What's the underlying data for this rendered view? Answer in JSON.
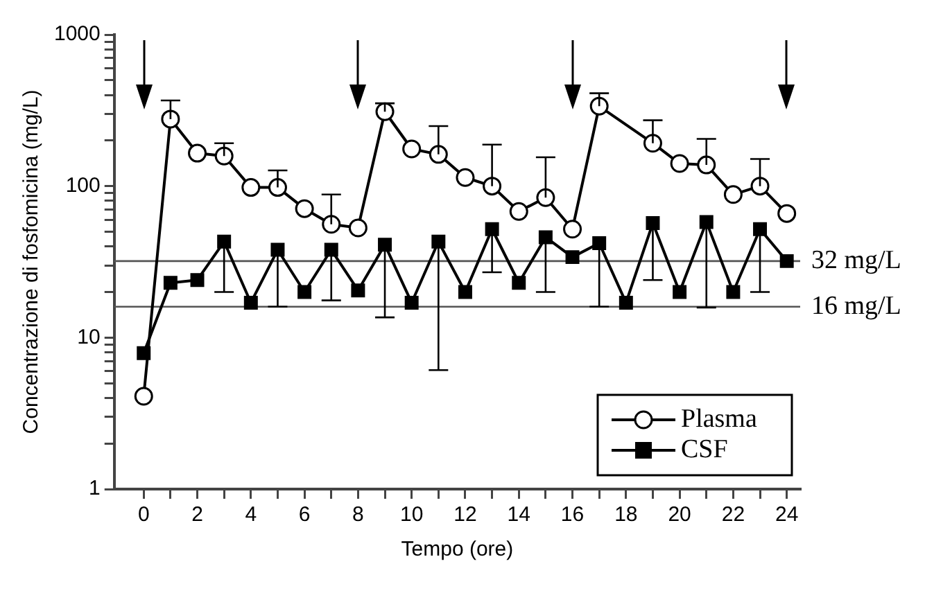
{
  "chart_data": {
    "type": "line",
    "xlabel": "Tempo (ore)",
    "ylabel": "Concentrazione di fosfomicina (mg/L)",
    "log": "y",
    "xlim": [
      -1.1,
      24.5
    ],
    "ylim": [
      1,
      1000
    ],
    "xticks": [
      0,
      {
        "value": 1,
        "label": null
      },
      2,
      {
        "value": 3,
        "label": null
      },
      4,
      {
        "value": 5,
        "label": null
      },
      6,
      {
        "value": 7,
        "label": null
      },
      8,
      {
        "value": 9,
        "label": null
      },
      10,
      {
        "value": 11,
        "label": null
      },
      12,
      {
        "value": 13,
        "label": null
      },
      14,
      {
        "value": 15,
        "label": null
      },
      16,
      {
        "value": 17,
        "label": null
      },
      18,
      {
        "value": 19,
        "label": null
      },
      20,
      {
        "value": 21,
        "label": null
      },
      22,
      {
        "value": 23,
        "label": null
      },
      24
    ],
    "yticks": [
      1,
      {
        "value": 2,
        "label": null
      },
      {
        "value": 3,
        "label": null
      },
      {
        "value": 4,
        "label": null
      },
      {
        "value": 5,
        "label": null
      },
      {
        "value": 6,
        "label": null
      },
      {
        "value": 7,
        "label": null
      },
      {
        "value": 8,
        "label": null
      },
      {
        "value": 9,
        "label": null
      },
      10,
      {
        "value": 20,
        "label": null
      },
      {
        "value": 30,
        "label": null
      },
      {
        "value": 40,
        "label": null
      },
      {
        "value": 50,
        "label": null
      },
      {
        "value": 60,
        "label": null
      },
      {
        "value": 70,
        "label": null
      },
      {
        "value": 80,
        "label": null
      },
      {
        "value": 90,
        "label": null
      },
      100,
      {
        "value": 200,
        "label": null
      },
      {
        "value": 300,
        "label": null
      },
      {
        "value": 400,
        "label": null
      },
      {
        "value": 500,
        "label": null
      },
      {
        "value": 600,
        "label": null
      },
      {
        "value": 700,
        "label": null
      },
      {
        "value": 800,
        "label": null
      },
      {
        "value": 900,
        "label": null
      },
      1000
    ],
    "grid": false,
    "legend": "bottom right",
    "line_style": "solid",
    "series": [
      {
        "name": "Plasma",
        "color": "#000000",
        "marker": "circle",
        "x": [
          0,
          1,
          2,
          3,
          4,
          5,
          6,
          7,
          8,
          9,
          10,
          11,
          12,
          13,
          14,
          15,
          16,
          17,
          19,
          20,
          21,
          22,
          23,
          24
        ],
        "values": [
          4.1,
          277,
          165,
          158,
          98,
          98,
          71,
          56,
          53,
          310,
          176,
          162,
          114,
          100,
          68,
          84,
          52,
          337,
          192,
          141,
          138,
          88,
          100,
          66
        ],
        "errors": [
          null,
          [
            277,
            368
          ],
          null,
          [
            158,
            192
          ],
          null,
          [
            98,
            127
          ],
          null,
          [
            56,
            88
          ],
          null,
          [
            310,
            352
          ],
          null,
          [
            162,
            249
          ],
          null,
          [
            100,
            188
          ],
          null,
          [
            84,
            155
          ],
          null,
          [
            337,
            410
          ],
          [
            192,
            272
          ],
          null,
          [
            138,
            205
          ],
          null,
          [
            100,
            151
          ],
          null
        ]
      },
      {
        "name": "CSF",
        "color": "#000000",
        "marker": "square",
        "x": [
          0,
          1,
          2,
          3,
          4,
          5,
          6,
          7,
          8,
          9,
          10,
          11,
          12,
          13,
          14,
          15,
          16,
          17,
          18,
          19,
          20,
          21,
          22,
          23,
          24
        ],
        "values": [
          7.9,
          23,
          24,
          43,
          17,
          38,
          20,
          38,
          20.5,
          41,
          17,
          43,
          20,
          52,
          23,
          46,
          34,
          42,
          17,
          57,
          20,
          58,
          20,
          52,
          32
        ],
        "errors": [
          null,
          null,
          null,
          [
            20,
            43
          ],
          null,
          [
            16,
            38
          ],
          null,
          [
            17.6,
            38
          ],
          null,
          [
            13.6,
            41
          ],
          null,
          [
            6.1,
            43
          ],
          null,
          [
            27,
            52
          ],
          null,
          [
            20,
            46
          ],
          null,
          [
            16,
            42
          ],
          null,
          [
            24,
            57
          ],
          null,
          [
            15.8,
            58
          ],
          null,
          [
            20,
            52
          ],
          null
        ]
      }
    ],
    "ref_lines": [
      {
        "axis": "y",
        "value": 32,
        "label": "32 mg/L",
        "color": "#555555"
      },
      {
        "axis": "y",
        "value": 16,
        "label": "16 mg/L",
        "color": "#555555"
      }
    ]
  }
}
